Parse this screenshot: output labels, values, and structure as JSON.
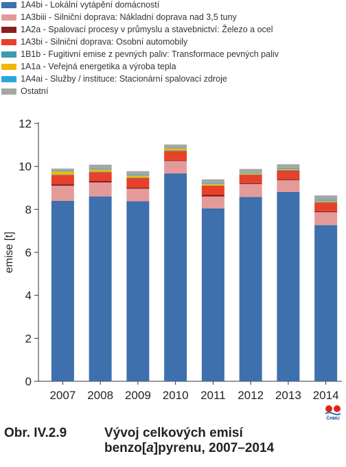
{
  "legend": [
    {
      "label": "1A4bi - Lokální vytápění domácností",
      "color": "#3d70ad"
    },
    {
      "label": "1A3biii - Silniční doprava: Nákladní doprava nad 3,5 tuny",
      "color": "#e59a9a"
    },
    {
      "label": "1A2a - Spalovací procesy v průmyslu a stavebnictví: Železo a ocel",
      "color": "#8b1f1f"
    },
    {
      "label": "1A3bi - Silniční doprava: Osobní automobily",
      "color": "#e8412a"
    },
    {
      "label": "1B1b - Fugitivní emise z pevných paliv: Transformace pevných paliv",
      "color": "#3e9ab0"
    },
    {
      "label": "1A1a - Veřejná energetika a výroba tepla",
      "color": "#f2b705"
    },
    {
      "label": "1A4ai - Služby / instituce: Stacionární spalovací zdroje",
      "color": "#2aa6dc"
    },
    {
      "label": "Ostatní",
      "color": "#a6a6a6"
    }
  ],
  "chart_data": {
    "type": "bar",
    "stacked": true,
    "ylabel": "emise [t]",
    "ylim": [
      0,
      12
    ],
    "yticks": [
      0,
      2,
      4,
      6,
      8,
      10,
      12
    ],
    "categories": [
      "2007",
      "2008",
      "2009",
      "2010",
      "2011",
      "2012",
      "2013",
      "2014"
    ],
    "series": [
      {
        "name": "1A4bi - Lokální vytápění domácností",
        "color": "#3d70ad",
        "values": [
          8.4,
          8.6,
          8.38,
          9.67,
          8.05,
          8.58,
          8.81,
          7.27
        ]
      },
      {
        "name": "1A3biii - Silniční doprava: Nákladní doprava nad 3,5 tuny",
        "color": "#e59a9a",
        "values": [
          0.7,
          0.65,
          0.58,
          0.58,
          0.55,
          0.6,
          0.55,
          0.6
        ]
      },
      {
        "name": "1A2a - Spalovací procesy v průmyslu a stavebnictví: Železo a ocel",
        "color": "#8b1f1f",
        "values": [
          0.08,
          0.08,
          0.06,
          0.03,
          0.08,
          0.05,
          0.05,
          0.05
        ]
      },
      {
        "name": "1A3bi - Silniční doprava: Osobní automobily",
        "color": "#e8412a",
        "values": [
          0.42,
          0.4,
          0.43,
          0.43,
          0.42,
          0.38,
          0.39,
          0.4
        ]
      },
      {
        "name": "1B1b - Fugitivní emise z pevných paliv: Transformace pevných paliv",
        "color": "#3e9ab0",
        "values": [
          0.02,
          0.03,
          0.03,
          0.03,
          0.02,
          0.02,
          0.04,
          0.03
        ]
      },
      {
        "name": "1A1a - Veřejná energetika a výroba tepla",
        "color": "#f2b705",
        "values": [
          0.15,
          0.1,
          0.1,
          0.1,
          0.07,
          0.05,
          0.05,
          0.05
        ]
      },
      {
        "name": "1A4ai - Služby / instituce: Stacionární spalovací zdroje",
        "color": "#2aa6dc",
        "values": [
          0.03,
          0.04,
          0.04,
          0.03,
          0.03,
          0.03,
          0.04,
          0.05
        ]
      },
      {
        "name": "Ostatní",
        "color": "#a6a6a6",
        "values": [
          0.1,
          0.18,
          0.16,
          0.15,
          0.18,
          0.17,
          0.17,
          0.2
        ]
      }
    ]
  },
  "caption": {
    "number": "Obr. IV.2.9",
    "line1": "Vývoj celkových emisí",
    "line2": "benzo[a]pyrenu, 2007–2014"
  },
  "logo": {
    "text": "ČHMÚ"
  }
}
